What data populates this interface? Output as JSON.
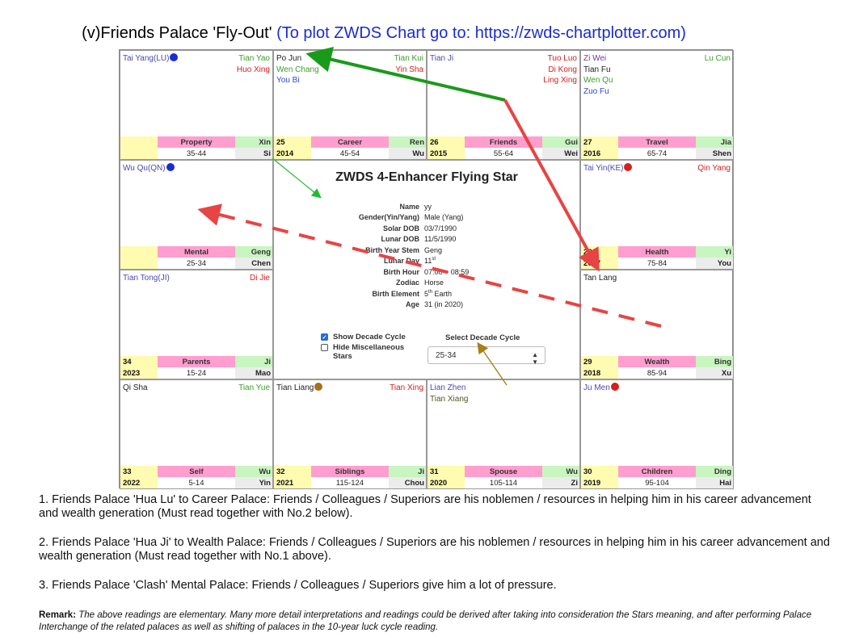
{
  "heading": {
    "main": "(v)Friends Palace 'Fly-Out'",
    "link": "(To plot ZWDS Chart go to: https://zwds-chartplotter.com)"
  },
  "palaces": [
    {
      "id": "p0",
      "stars_left": [
        "Tai Yang(LU)"
      ],
      "dot": "#1a2bd6",
      "stars_right": [
        "Tian Yao",
        "Huo Xing"
      ],
      "num": "",
      "year": "",
      "name": "Property",
      "range": "35-44",
      "stem": "Xin",
      "branch": "Si"
    },
    {
      "id": "p1",
      "stars_left": [
        "Po Jun",
        "Wen Chang",
        "You Bi"
      ],
      "stars_right": [
        "Tian Kui",
        "Yin Sha"
      ],
      "num": "25",
      "year": "2014",
      "name": "Career",
      "range": "45-54",
      "stem": "Ren",
      "branch": "Wu"
    },
    {
      "id": "p2",
      "stars_left": [
        "Tian Ji"
      ],
      "stars_right": [
        "Tuo Luo",
        "Di Kong",
        "Ling Xing"
      ],
      "num": "26",
      "year": "2015",
      "name": "Friends",
      "range": "55-64",
      "stem": "Gui",
      "branch": "Wei"
    },
    {
      "id": "p3",
      "stars_left": [
        "Zi Wei",
        "Tian Fu",
        "Wen Qu",
        "Zuo Fu"
      ],
      "stars_right": [
        "Lu Cun"
      ],
      "num": "27",
      "year": "2016",
      "name": "Travel",
      "range": "65-74",
      "stem": "Jia",
      "branch": "Shen"
    },
    {
      "id": "p4",
      "stars_left": [
        "Wu Qu(QN)"
      ],
      "dot": "#1a2bd6",
      "stars_right": [],
      "num": "",
      "year": "",
      "name": "Mental",
      "range": "25-34",
      "stem": "Geng",
      "branch": "Chen"
    },
    {
      "id": "p5",
      "stars_left": [
        "Tai Yin(KE)"
      ],
      "dot": "#d42020",
      "stars_right": [
        "Qin Yang"
      ],
      "num": "28",
      "year": "2017",
      "name": "Health",
      "range": "75-84",
      "stem": "Yi",
      "branch": "You"
    },
    {
      "id": "p6",
      "stars_left": [
        "Tian Tong(JI)"
      ],
      "stars_right": [
        "Di Jie"
      ],
      "num": "34",
      "year": "2023",
      "name": "Parents",
      "range": "15-24",
      "stem": "Ji",
      "branch": "Mao"
    },
    {
      "id": "p7",
      "stars_left": [
        "Tan Lang"
      ],
      "stars_right": [],
      "num": "29",
      "year": "2018",
      "name": "Wealth",
      "range": "85-94",
      "stem": "Bing",
      "branch": "Xu"
    },
    {
      "id": "p8",
      "stars_left": [
        "Qi Sha"
      ],
      "stars_right": [
        "Tian Yue"
      ],
      "num": "33",
      "year": "2022",
      "name": "Self",
      "range": "5-14",
      "stem": "Wu",
      "branch": "Yin"
    },
    {
      "id": "p9",
      "stars_left": [
        "Tian Liang"
      ],
      "dot": "#a8701a",
      "stars_right": [
        "Tian Xing"
      ],
      "num": "32",
      "year": "2021",
      "name": "Siblings",
      "range": "115-124",
      "stem": "Ji",
      "branch": "Chou"
    },
    {
      "id": "p10",
      "stars_left": [
        "Lian Zhen",
        "Tian Xiang"
      ],
      "stars_right": [],
      "num": "31",
      "year": "2020",
      "name": "Spouse",
      "range": "105-114",
      "stem": "Wu",
      "branch": "Zi"
    },
    {
      "id": "p11",
      "stars_left": [
        "Ju Men"
      ],
      "dot": "#d42020",
      "stars_right": [],
      "num": "30",
      "year": "2019",
      "name": "Children",
      "range": "95-104",
      "stem": "Ding",
      "branch": "Hai"
    }
  ],
  "center": {
    "title": "ZWDS 4-Enhancer Flying Star",
    "info": [
      {
        "k": "Name",
        "v": "yy"
      },
      {
        "k": "Gender(Yin/Yang)",
        "v": "Male (Yang)"
      },
      {
        "k": "Solar DOB",
        "v": "03/7/1990"
      },
      {
        "k": "Lunar DOB",
        "v": "11/5/1990"
      },
      {
        "k": "Birth Year Stem",
        "v": "Geng"
      },
      {
        "k": "Lunar Day",
        "v": "11",
        "sup": "st"
      },
      {
        "k": "Birth Hour",
        "v": "07:00 ~ 08:59"
      },
      {
        "k": "Zodiac",
        "v": "Horse"
      },
      {
        "k": "Birth Element",
        "v": "5",
        "sup": "th",
        "v2": " Earth"
      },
      {
        "k": "Age",
        "v": "31 (in 2020)"
      }
    ],
    "show_decade": "Show Decade Cycle",
    "hide_misc_1": "Hide Miscellaneous",
    "hide_misc_2": "Stars",
    "select_label": "Select Decade Cycle",
    "select_value": "25-34"
  },
  "notes": [
    "1. Friends Palace 'Hua Lu' to Career Palace: Friends / Colleagues / Superiors are his noblemen / resources in helping him in his career advancement and wealth generation (Must read together with No.2 below).",
    "2. Friends Palace 'Hua Ji' to Wealth Palace: Friends / Colleagues / Superiors are his noblemen / resources in helping him in his career advancement and wealth generation (Must read together with No.1 above).",
    "3. Friends Palace 'Clash' Mental Palace: Friends / Colleagues / Superiors give him a lot of pressure."
  ],
  "remark": {
    "label": "Remark:",
    "text": " The above readings are elementary. Many more detail interpretations and readings could be derived after taking into consideration the Stars meaning, and after performing Palace Interchange of the related palaces as well as shifting of palaces in the 10-year luck cycle reading."
  },
  "colors": {
    "hua_lu_arrow": "#1a9a1a",
    "hua_ji_arrow": "#e84444",
    "clash_arrow": "#e84444",
    "center_arrow": "#22bb33",
    "select_arrow": "#a8801a"
  }
}
